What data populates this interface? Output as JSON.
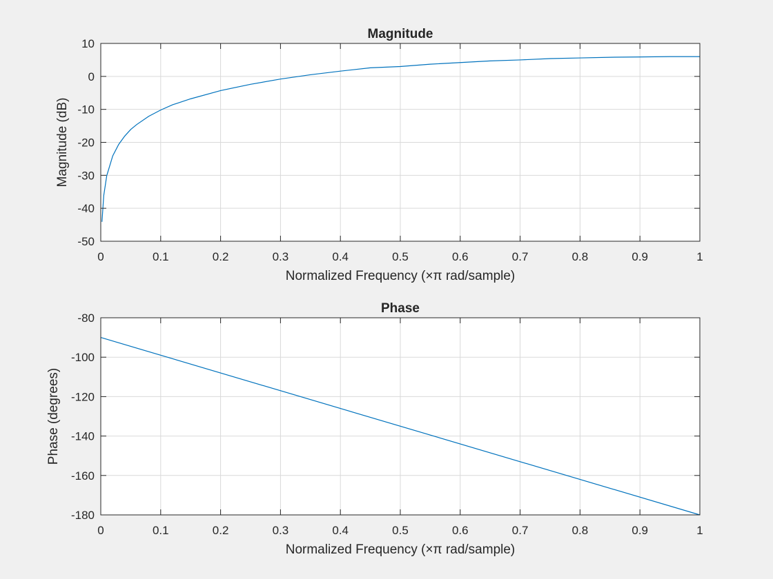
{
  "chart_data": [
    {
      "type": "line",
      "title": "Magnitude",
      "xlabel": "Normalized Frequency  (×π rad/sample)",
      "ylabel": "Magnitude (dB)",
      "xlim": [
        0,
        1
      ],
      "ylim": [
        -50,
        10
      ],
      "xticks": [
        0,
        0.1,
        0.2,
        0.3,
        0.4,
        0.5,
        0.6,
        0.7,
        0.8,
        0.9,
        1
      ],
      "xtick_labels": [
        "0",
        "0.1",
        "0.2",
        "0.3",
        "0.4",
        "0.5",
        "0.6",
        "0.7",
        "0.8",
        "0.9",
        "1"
      ],
      "yticks": [
        10,
        0,
        -10,
        -20,
        -30,
        -40,
        -50
      ],
      "ytick_labels": [
        "10",
        "0",
        "-10",
        "-20",
        "-30",
        "-40",
        "-50"
      ],
      "grid": true,
      "series": [
        {
          "color": "#0072bd",
          "x": [
            0.002,
            0.005,
            0.01,
            0.02,
            0.03,
            0.04,
            0.05,
            0.06,
            0.08,
            0.1,
            0.12,
            0.15,
            0.2,
            0.25,
            0.3,
            0.35,
            0.4,
            0.45,
            0.5,
            0.55,
            0.6,
            0.65,
            0.7,
            0.75,
            0.8,
            0.85,
            0.9,
            0.95,
            1.0
          ],
          "y": [
            -44.1,
            -36.1,
            -30.1,
            -24.1,
            -20.6,
            -18.1,
            -16.1,
            -14.6,
            -12.1,
            -10.2,
            -8.6,
            -6.8,
            -4.3,
            -2.4,
            -0.8,
            0.5,
            1.6,
            2.6,
            3.0,
            3.7,
            4.2,
            4.7,
            5.0,
            5.4,
            5.6,
            5.8,
            5.9,
            6.0,
            6.0
          ]
        }
      ]
    },
    {
      "type": "line",
      "title": "Phase",
      "xlabel": "Normalized Frequency  (×π rad/sample)",
      "ylabel": "Phase (degrees)",
      "xlim": [
        0,
        1
      ],
      "ylim": [
        -180,
        -80
      ],
      "xticks": [
        0,
        0.1,
        0.2,
        0.3,
        0.4,
        0.5,
        0.6,
        0.7,
        0.8,
        0.9,
        1
      ],
      "xtick_labels": [
        "0",
        "0.1",
        "0.2",
        "0.3",
        "0.4",
        "0.5",
        "0.6",
        "0.7",
        "0.8",
        "0.9",
        "1"
      ],
      "yticks": [
        -80,
        -100,
        -120,
        -140,
        -160,
        -180
      ],
      "ytick_labels": [
        "-80",
        "-100",
        "-120",
        "-140",
        "-160",
        "-180"
      ],
      "grid": true,
      "series": [
        {
          "color": "#0072bd",
          "x": [
            0,
            1
          ],
          "y": [
            -90,
            -180
          ]
        }
      ]
    }
  ]
}
